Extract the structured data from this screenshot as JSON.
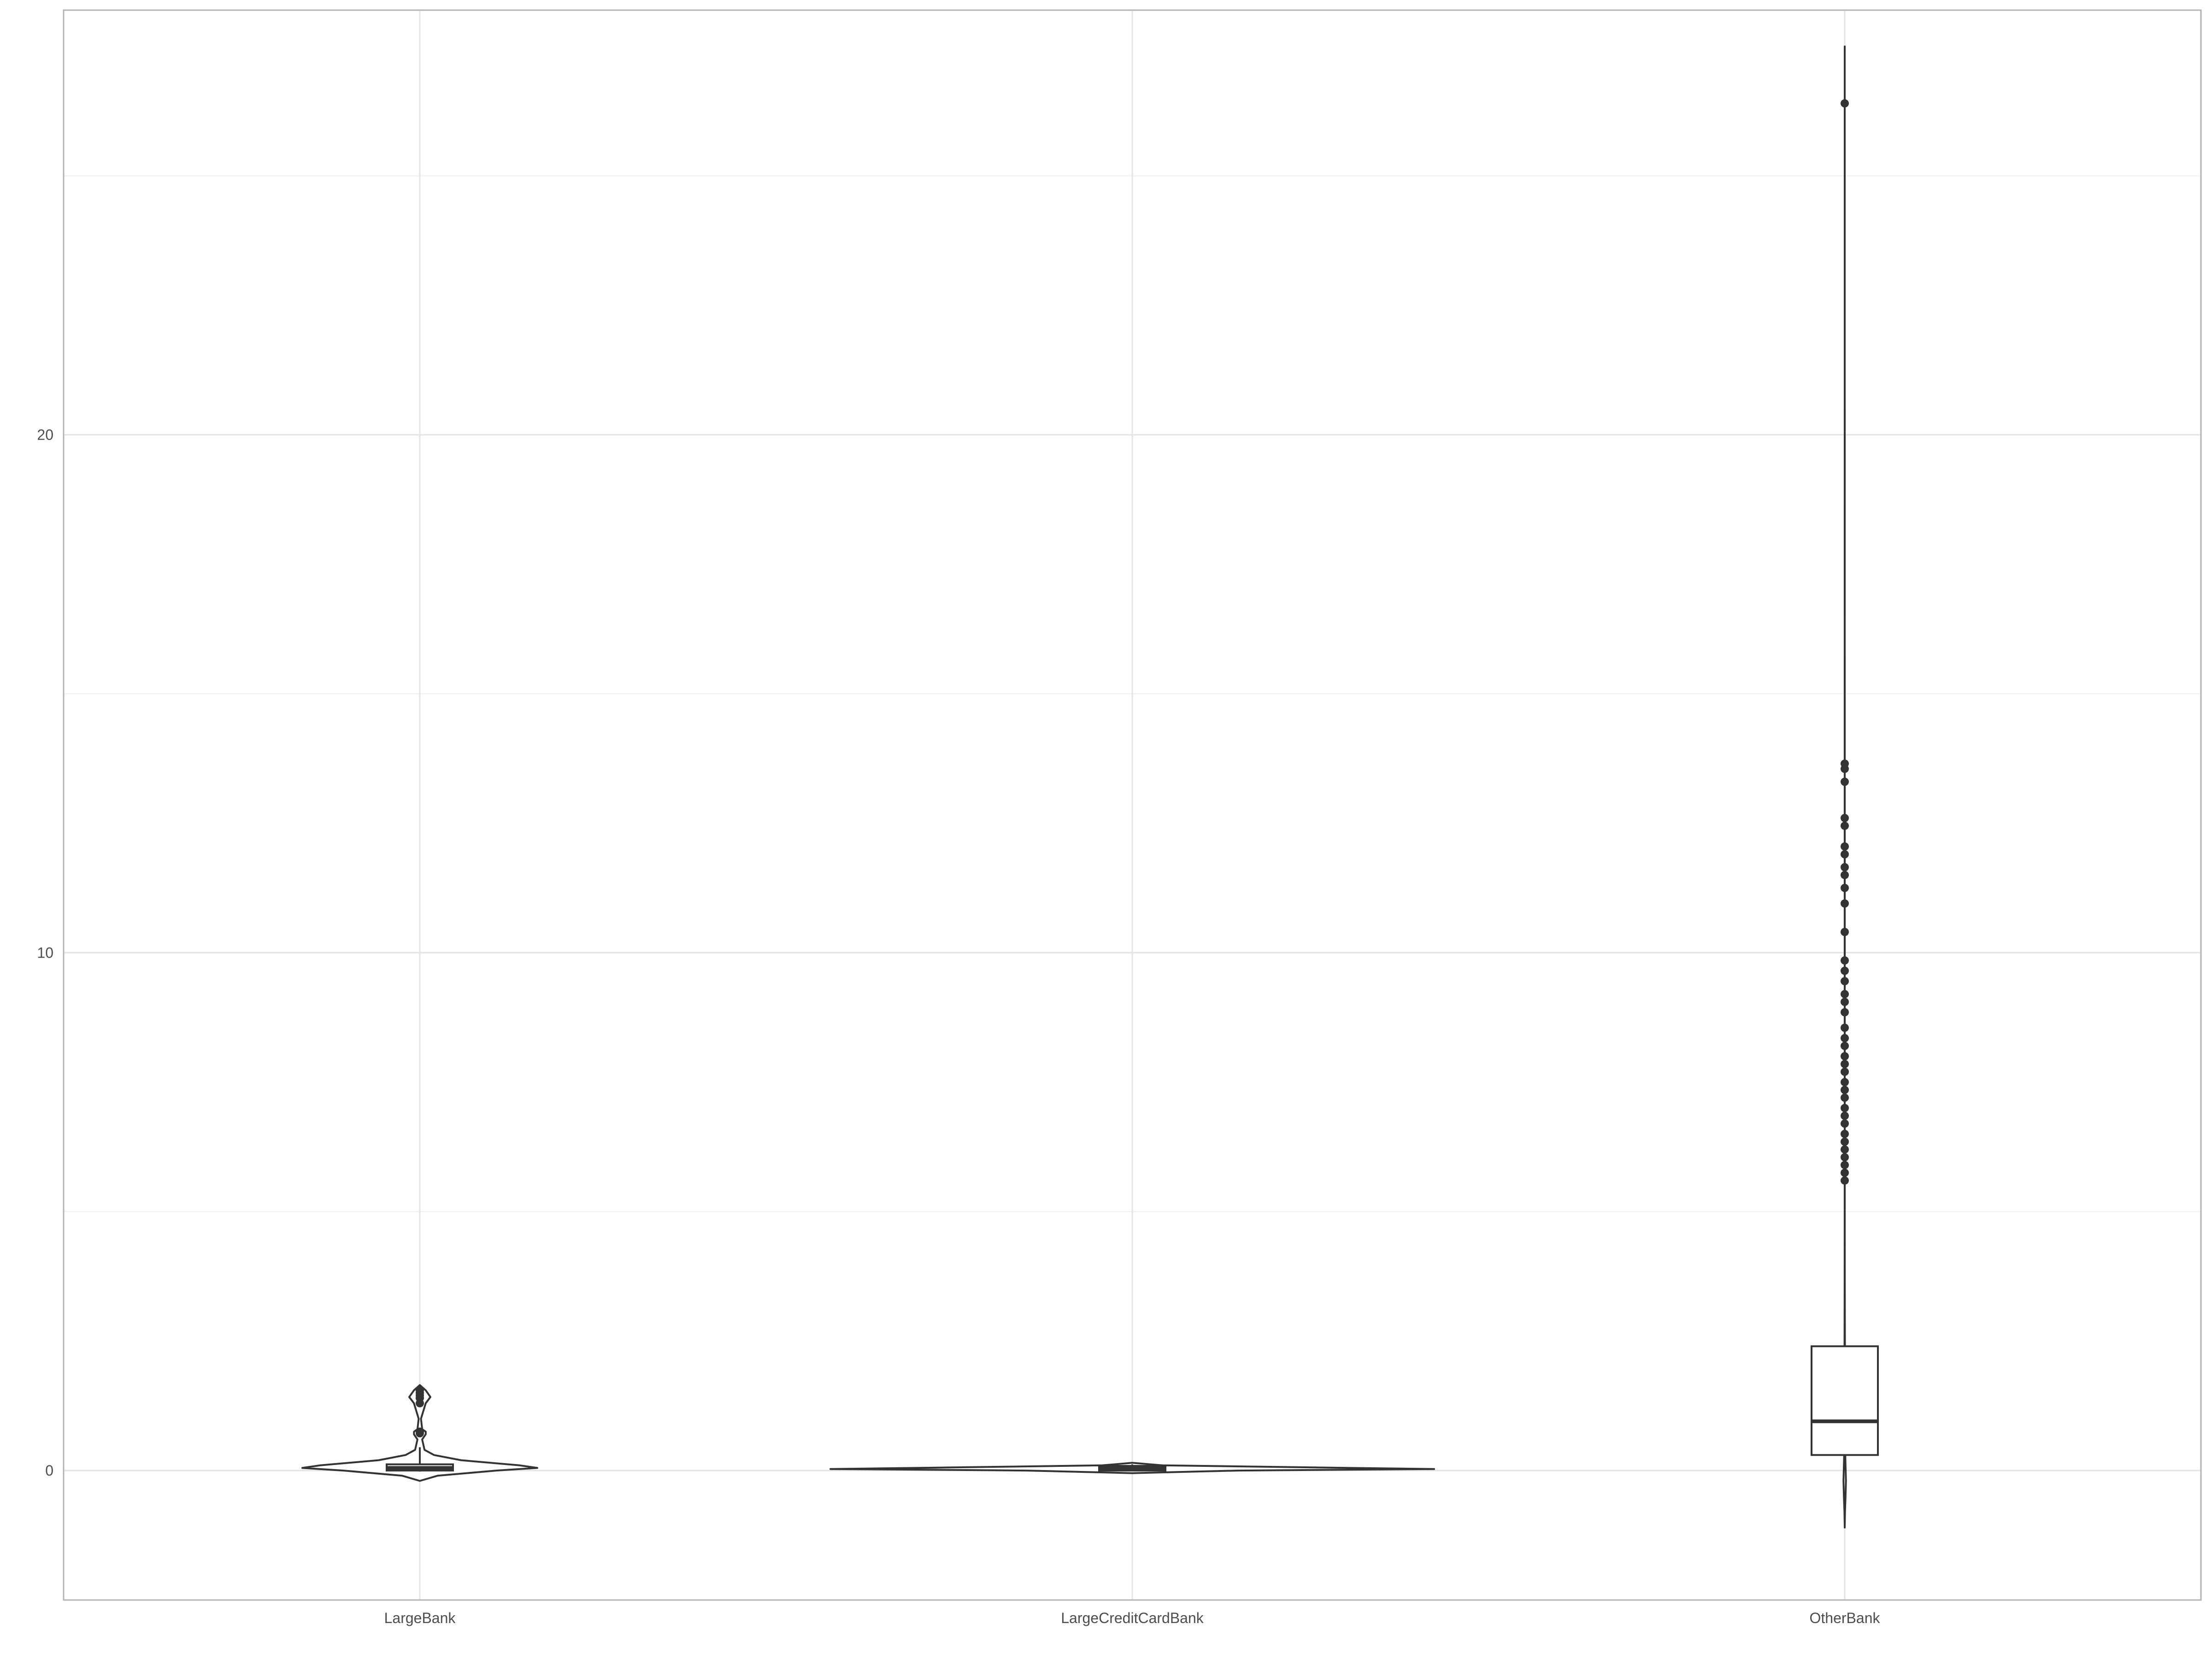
{
  "chart_data": {
    "type": "violin",
    "title": "",
    "xlabel": "",
    "ylabel": "",
    "categories": [
      "LargeBank",
      "LargeCreditCardBank",
      "OtherBank"
    ],
    "ylim": [
      -2.5,
      28.2
    ],
    "yticks": [
      0,
      10,
      20
    ],
    "grid": true,
    "legend": "none",
    "groups": [
      {
        "name": "LargeBank",
        "violin": [
          [
            -0.2,
            0.0
          ],
          [
            -0.1,
            0.15
          ],
          [
            0.0,
            0.65
          ],
          [
            0.05,
            1.0
          ],
          [
            0.1,
            0.85
          ],
          [
            0.2,
            0.35
          ],
          [
            0.3,
            0.12
          ],
          [
            0.4,
            0.04
          ],
          [
            0.6,
            0.02
          ],
          [
            0.7,
            0.05
          ],
          [
            0.75,
            0.05
          ],
          [
            0.8,
            0.02
          ],
          [
            1.0,
            0.01
          ],
          [
            1.3,
            0.05
          ],
          [
            1.42,
            0.09
          ],
          [
            1.55,
            0.05
          ],
          [
            1.65,
            0.0
          ]
        ],
        "box": {
          "q1": 0.0,
          "median": 0.05,
          "q3": 0.12,
          "whisker_low": -0.02,
          "whisker_high": 0.45
        },
        "outliers": [
          0.72,
          0.75,
          1.3,
          1.4,
          1.45,
          1.5,
          1.55
        ]
      },
      {
        "name": "LargeCreditCardBank",
        "violin": [
          [
            -0.05,
            0.0
          ],
          [
            0.0,
            0.35
          ],
          [
            0.03,
            1.0
          ],
          [
            0.06,
            0.6
          ],
          [
            0.1,
            0.1
          ],
          [
            0.15,
            0.0
          ]
        ],
        "box": {
          "q1": 0.0,
          "median": 0.04,
          "q3": 0.09,
          "whisker_low": 0.0,
          "whisker_high": 0.12
        },
        "outliers": []
      },
      {
        "name": "OtherBank",
        "violin": [
          [
            -1.1,
            0.0
          ],
          [
            -0.8,
            0.02
          ],
          [
            -0.5,
            0.06
          ],
          [
            -0.2,
            0.09
          ],
          [
            0.0,
            0.07
          ],
          [
            0.3,
            0.04
          ],
          [
            0.6,
            0.02
          ],
          [
            1.0,
            0.03
          ],
          [
            1.5,
            0.02
          ],
          [
            2.5,
            0.015
          ],
          [
            3.5,
            0.008
          ],
          [
            5.0,
            0.004
          ],
          [
            8.0,
            0.003
          ],
          [
            14.0,
            0.002
          ],
          [
            27.5,
            0.0
          ]
        ],
        "box": {
          "q1": 0.3,
          "median": 0.95,
          "q3": 2.4,
          "whisker_low": 0.0,
          "whisker_high": 5.5
        },
        "outliers": [
          5.6,
          5.75,
          5.9,
          6.05,
          6.2,
          6.35,
          6.5,
          6.7,
          6.85,
          7.0,
          7.2,
          7.35,
          7.5,
          7.7,
          7.85,
          8.0,
          8.2,
          8.35,
          8.55,
          8.85,
          9.05,
          9.2,
          9.45,
          9.65,
          9.85,
          10.4,
          10.95,
          11.25,
          11.5,
          11.65,
          11.9,
          12.05,
          12.45,
          12.6,
          13.3,
          13.55,
          13.65,
          26.4
        ]
      }
    ]
  }
}
